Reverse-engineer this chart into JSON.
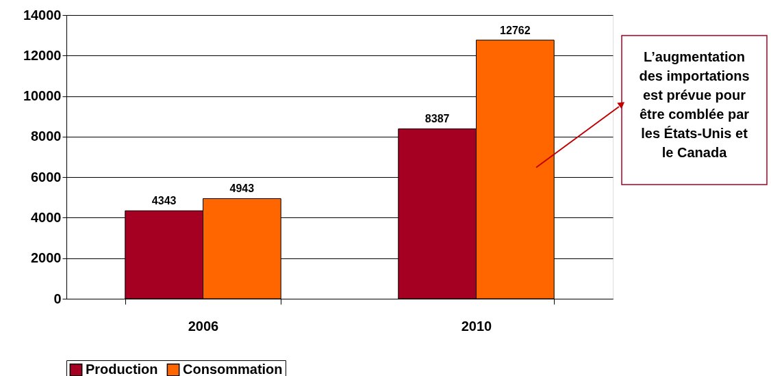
{
  "chart_data": {
    "type": "bar",
    "categories": [
      "2006",
      "2010"
    ],
    "series": [
      {
        "name": "Production",
        "color": "#a50021",
        "values": [
          4343,
          8387
        ]
      },
      {
        "name": "Consommation",
        "color": "#ff6600",
        "values": [
          4943,
          12762
        ]
      }
    ],
    "ylim": [
      0,
      14000
    ],
    "yticks": [
      0,
      2000,
      4000,
      6000,
      8000,
      10000,
      12000,
      14000
    ],
    "grid": "y",
    "legend": "bottom",
    "data_labels": true,
    "annotations": [
      "L’augmentation\ndes importations\nest prévue pour\nêtre comblée par\nles États-Unis et\nle Canada"
    ]
  }
}
